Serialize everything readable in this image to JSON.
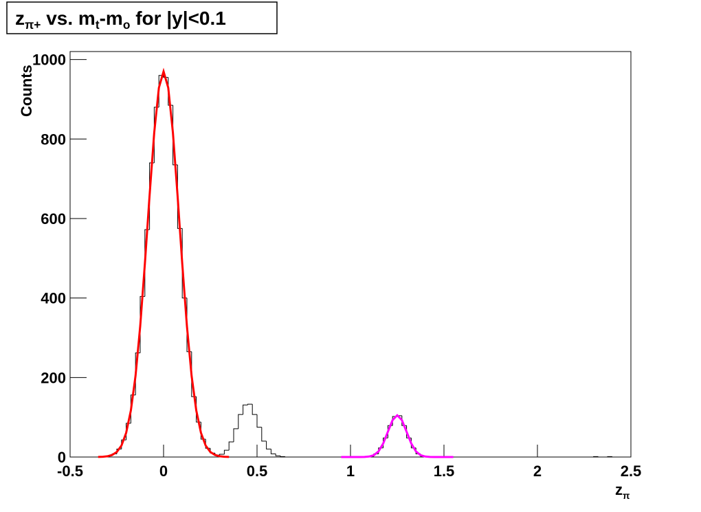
{
  "chart_data": {
    "type": "histogram",
    "title": [
      "z",
      "π+",
      " vs. m",
      "t",
      "-m",
      "o",
      " for |y|<0.1"
    ],
    "xlabel": [
      "z",
      "π"
    ],
    "ylabel": "Counts",
    "bins": [
      -0.5,
      -0.475,
      -0.45,
      -0.425,
      -0.4,
      -0.375,
      -0.35,
      -0.325,
      -0.3,
      -0.275,
      -0.25,
      -0.225,
      -0.2,
      -0.175,
      -0.15,
      -0.125,
      -0.1,
      -0.075,
      -0.05,
      -0.025,
      0,
      0.025,
      0.05,
      0.075,
      0.1,
      0.125,
      0.15,
      0.175,
      0.2,
      0.225,
      0.25,
      0.275,
      0.3,
      0.325,
      0.35,
      0.375,
      0.4,
      0.425,
      0.45,
      0.475,
      0.5,
      0.525,
      0.55,
      0.575,
      0.6,
      0.625,
      0.65,
      0.675,
      0.7,
      0.725,
      0.75,
      0.775,
      0.8,
      0.825,
      0.85,
      0.875,
      0.9,
      0.925,
      0.95,
      0.975,
      1,
      1.025,
      1.05,
      1.075,
      1.1,
      1.125,
      1.15,
      1.175,
      1.2,
      1.225,
      1.25,
      1.275,
      1.3,
      1.325,
      1.35,
      1.375,
      1.4,
      1.425,
      1.45,
      1.475,
      1.5,
      1.525,
      1.55,
      1.575,
      1.6,
      1.625,
      1.65,
      1.675,
      1.7,
      1.725,
      1.75,
      1.775,
      1.8,
      1.825,
      1.85,
      1.875,
      1.9,
      1.925,
      1.95,
      1.975,
      2,
      2.025,
      2.05,
      2.075,
      2.1,
      2.125,
      2.15,
      2.175,
      2.2,
      2.225,
      2.25,
      2.275,
      2.3,
      2.325,
      2.35,
      2.375,
      2.4,
      2.425,
      2.45,
      2.475,
      2.5
    ],
    "values": [
      0,
      0,
      0,
      0,
      0,
      0,
      0,
      1,
      3,
      8,
      20,
      43,
      85,
      156,
      262,
      404,
      572,
      740,
      880,
      960,
      955,
      885,
      735,
      575,
      400,
      265,
      152,
      88,
      45,
      22,
      10,
      5,
      7,
      17,
      38,
      71,
      107,
      131,
      133,
      107,
      75,
      40,
      20,
      8,
      3,
      1,
      0,
      0,
      0,
      0,
      0,
      0,
      0,
      0,
      0,
      0,
      0,
      0,
      0,
      0,
      0,
      0,
      0,
      0,
      2,
      8,
      23,
      48,
      79,
      102,
      104,
      79,
      48,
      23,
      8,
      2,
      0,
      0,
      0,
      0,
      0,
      0,
      0,
      0,
      0,
      0,
      0,
      0,
      0,
      0,
      0,
      0,
      0,
      0,
      0,
      0,
      0,
      0,
      0,
      0,
      0,
      0,
      0,
      0,
      0,
      0,
      0,
      0,
      0,
      0,
      0,
      0,
      1,
      0,
      0,
      1,
      0,
      0,
      0,
      0
    ],
    "color": "#000000",
    "fits": [
      {
        "color": "#ff0000",
        "x": [
          -0.35,
          -0.325,
          -0.3,
          -0.275,
          -0.25,
          -0.225,
          -0.2,
          -0.175,
          -0.15,
          -0.125,
          -0.1,
          -0.075,
          -0.05,
          -0.025,
          0,
          0.025,
          0.05,
          0.075,
          0.1,
          0.125,
          0.15,
          0.175,
          0.2,
          0.225,
          0.25,
          0.275,
          0.3,
          0.325,
          0.35
        ],
        "values": [
          0.2,
          0.6,
          1.9,
          5.2,
          12.7,
          29,
          61,
          117,
          204,
          329,
          486,
          657,
          816,
          929,
          970,
          929,
          816,
          657,
          486,
          329,
          204,
          117,
          61,
          29,
          12.7,
          5.2,
          1.9,
          0.6,
          0.2
        ]
      },
      {
        "color": "#ff00ff",
        "x": [
          0.95,
          0.975,
          1,
          1.025,
          1.05,
          1.075,
          1.1,
          1.125,
          1.15,
          1.175,
          1.2,
          1.225,
          1.25,
          1.275,
          1.3,
          1.325,
          1.35,
          1.375,
          1.4,
          1.425,
          1.45,
          1.475,
          1.5,
          1.525,
          1.55
        ],
        "values": [
          0,
          0,
          0,
          0,
          0.03,
          0.23,
          1.2,
          4.6,
          14.2,
          34.1,
          63.7,
          92.7,
          105,
          92.7,
          63.7,
          34.1,
          14.2,
          4.6,
          1.2,
          0.23,
          0.03,
          0,
          0,
          0,
          0
        ]
      }
    ],
    "xlim": [
      -0.5,
      2.5
    ],
    "xticks": [
      -0.5,
      0,
      0.5,
      1,
      1.5,
      2,
      2.5
    ],
    "ylim": [
      0,
      1020
    ],
    "yticks": [
      0,
      200,
      400,
      600,
      800,
      1000
    ]
  }
}
